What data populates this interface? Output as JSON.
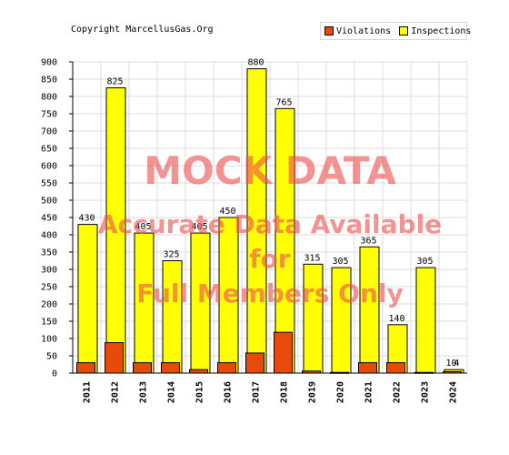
{
  "header": {
    "copyright": "Copyright MarcellusGas.Org"
  },
  "legend": {
    "items": [
      {
        "label": "Violations",
        "color": "#e84a0c"
      },
      {
        "label": "Inspections",
        "color": "#ffff00"
      }
    ]
  },
  "watermark": {
    "main": "MOCK DATA",
    "line1": "Accurate Data Available",
    "line2": "for",
    "line3": "Full Members Only"
  },
  "chart_data": {
    "type": "bar",
    "categories": [
      "2011",
      "2012",
      "2013",
      "2014",
      "2015",
      "2016",
      "2017",
      "2018",
      "2019",
      "2020",
      "2021",
      "2022",
      "2023",
      "2024"
    ],
    "series": [
      {
        "name": "Inspections",
        "color": "#ffff00",
        "values": [
          430,
          825,
          405,
          325,
          405,
          450,
          880,
          765,
          315,
          305,
          365,
          140,
          305,
          10
        ]
      },
      {
        "name": "Violations",
        "color": "#e84a0c",
        "values": [
          30,
          88,
          30,
          30,
          10,
          30,
          58,
          118,
          6,
          2,
          30,
          30,
          2,
          4
        ]
      }
    ],
    "ylim": [
      0,
      900
    ],
    "yticks": [
      0,
      50,
      100,
      150,
      200,
      250,
      300,
      350,
      400,
      450,
      500,
      550,
      600,
      650,
      700,
      750,
      800,
      850,
      900
    ],
    "grid": true,
    "legend_position": "top-right"
  }
}
